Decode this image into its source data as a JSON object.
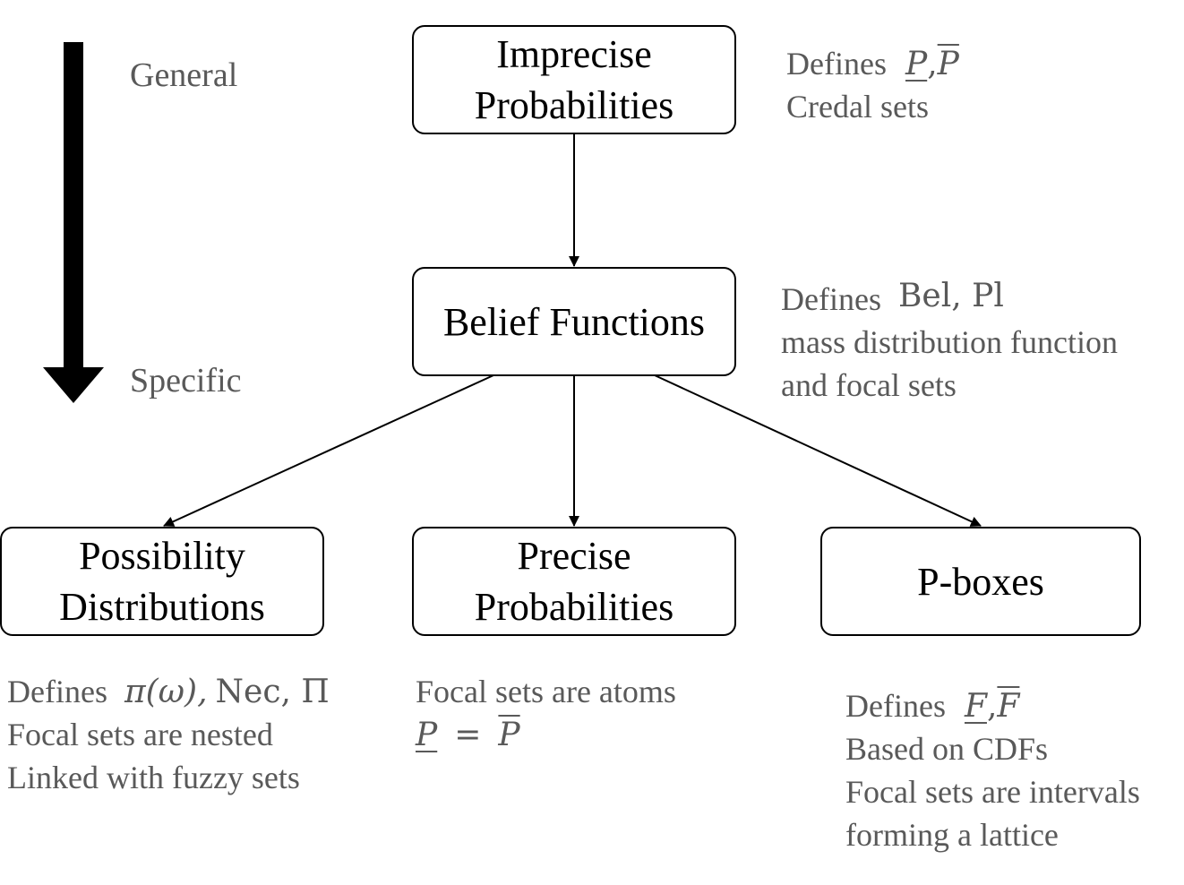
{
  "scale": {
    "top_label": "General",
    "bottom_label": "Specific"
  },
  "nodes": {
    "imprecise": {
      "lines": [
        "Imprecise",
        "Probabilities"
      ]
    },
    "belief": {
      "lines": [
        "Belief Functions"
      ]
    },
    "possibility": {
      "lines": [
        "Possibility",
        "Distributions"
      ]
    },
    "precise": {
      "lines": [
        "Precise",
        "Probabilities"
      ]
    },
    "pboxes": {
      "lines": [
        "P-boxes"
      ]
    }
  },
  "notes": {
    "imprecise": {
      "defines_label": "Defines",
      "p_lower": "P",
      "comma": ",",
      "p_upper": "P",
      "line2": "Credal sets"
    },
    "belief": {
      "defines_label": "Defines",
      "math": "Bel, Pl",
      "line2": "mass distribution function",
      "line3": "and focal sets"
    },
    "possibility": {
      "defines_label": "Defines",
      "math_pi": "π(ω),",
      "math_rest": "Nec, Π",
      "line2": "Focal sets are nested",
      "line3": "Linked with fuzzy sets"
    },
    "precise": {
      "line1": "Focal sets are atoms",
      "p_lower": "P",
      "eq": "=",
      "p_upper": "P"
    },
    "pboxes": {
      "defines_label": "Defines",
      "f_lower": "F",
      "comma": ",",
      "f_upper": "F",
      "line2": "Based on CDFs",
      "line3": "Focal sets are intervals",
      "line4": "forming a lattice"
    }
  }
}
